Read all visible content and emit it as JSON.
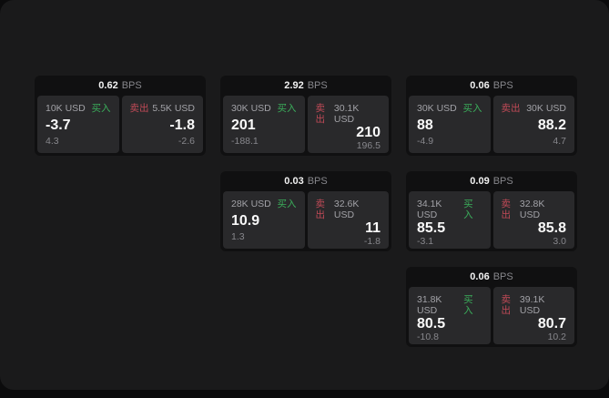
{
  "labels": {
    "bps_unit": "BPS",
    "buy": "买入",
    "sell": "卖出"
  },
  "colors": {
    "buy_green": "#3bae5b",
    "sell_red": "#c04a57",
    "page_bg": "#1a1a1b",
    "card_bg": "#101011",
    "panel_bg": "#29292b"
  },
  "cards": [
    {
      "col": 1,
      "row": 1,
      "bps": "0.62",
      "buy": {
        "size": "10K USD",
        "value": "-3.7",
        "sub": "4.3"
      },
      "sell": {
        "size": "5.5K USD",
        "value": "-1.8",
        "sub": "-2.6"
      }
    },
    {
      "col": 2,
      "row": 1,
      "bps": "2.92",
      "buy": {
        "size": "30K USD",
        "value": "201",
        "sub": "-188.1"
      },
      "sell": {
        "size": "30.1K USD",
        "value": "210",
        "sub": "196.5"
      }
    },
    {
      "col": 3,
      "row": 1,
      "bps": "0.06",
      "buy": {
        "size": "30K USD",
        "value": "88",
        "sub": "-4.9"
      },
      "sell": {
        "size": "30K USD",
        "value": "88.2",
        "sub": "4.7"
      }
    },
    {
      "col": 2,
      "row": 2,
      "bps": "0.03",
      "buy": {
        "size": "28K USD",
        "value": "10.9",
        "sub": "1.3"
      },
      "sell": {
        "size": "32.6K USD",
        "value": "11",
        "sub": "-1.8"
      }
    },
    {
      "col": 3,
      "row": 2,
      "bps": "0.09",
      "buy": {
        "size": "34.1K USD",
        "value": "85.5",
        "sub": "-3.1"
      },
      "sell": {
        "size": "32.8K USD",
        "value": "85.8",
        "sub": "3.0"
      }
    },
    {
      "col": 3,
      "row": 3,
      "bps": "0.06",
      "buy": {
        "size": "31.8K USD",
        "value": "80.5",
        "sub": "-10.8"
      },
      "sell": {
        "size": "39.1K USD",
        "value": "80.7",
        "sub": "10.2"
      }
    }
  ]
}
